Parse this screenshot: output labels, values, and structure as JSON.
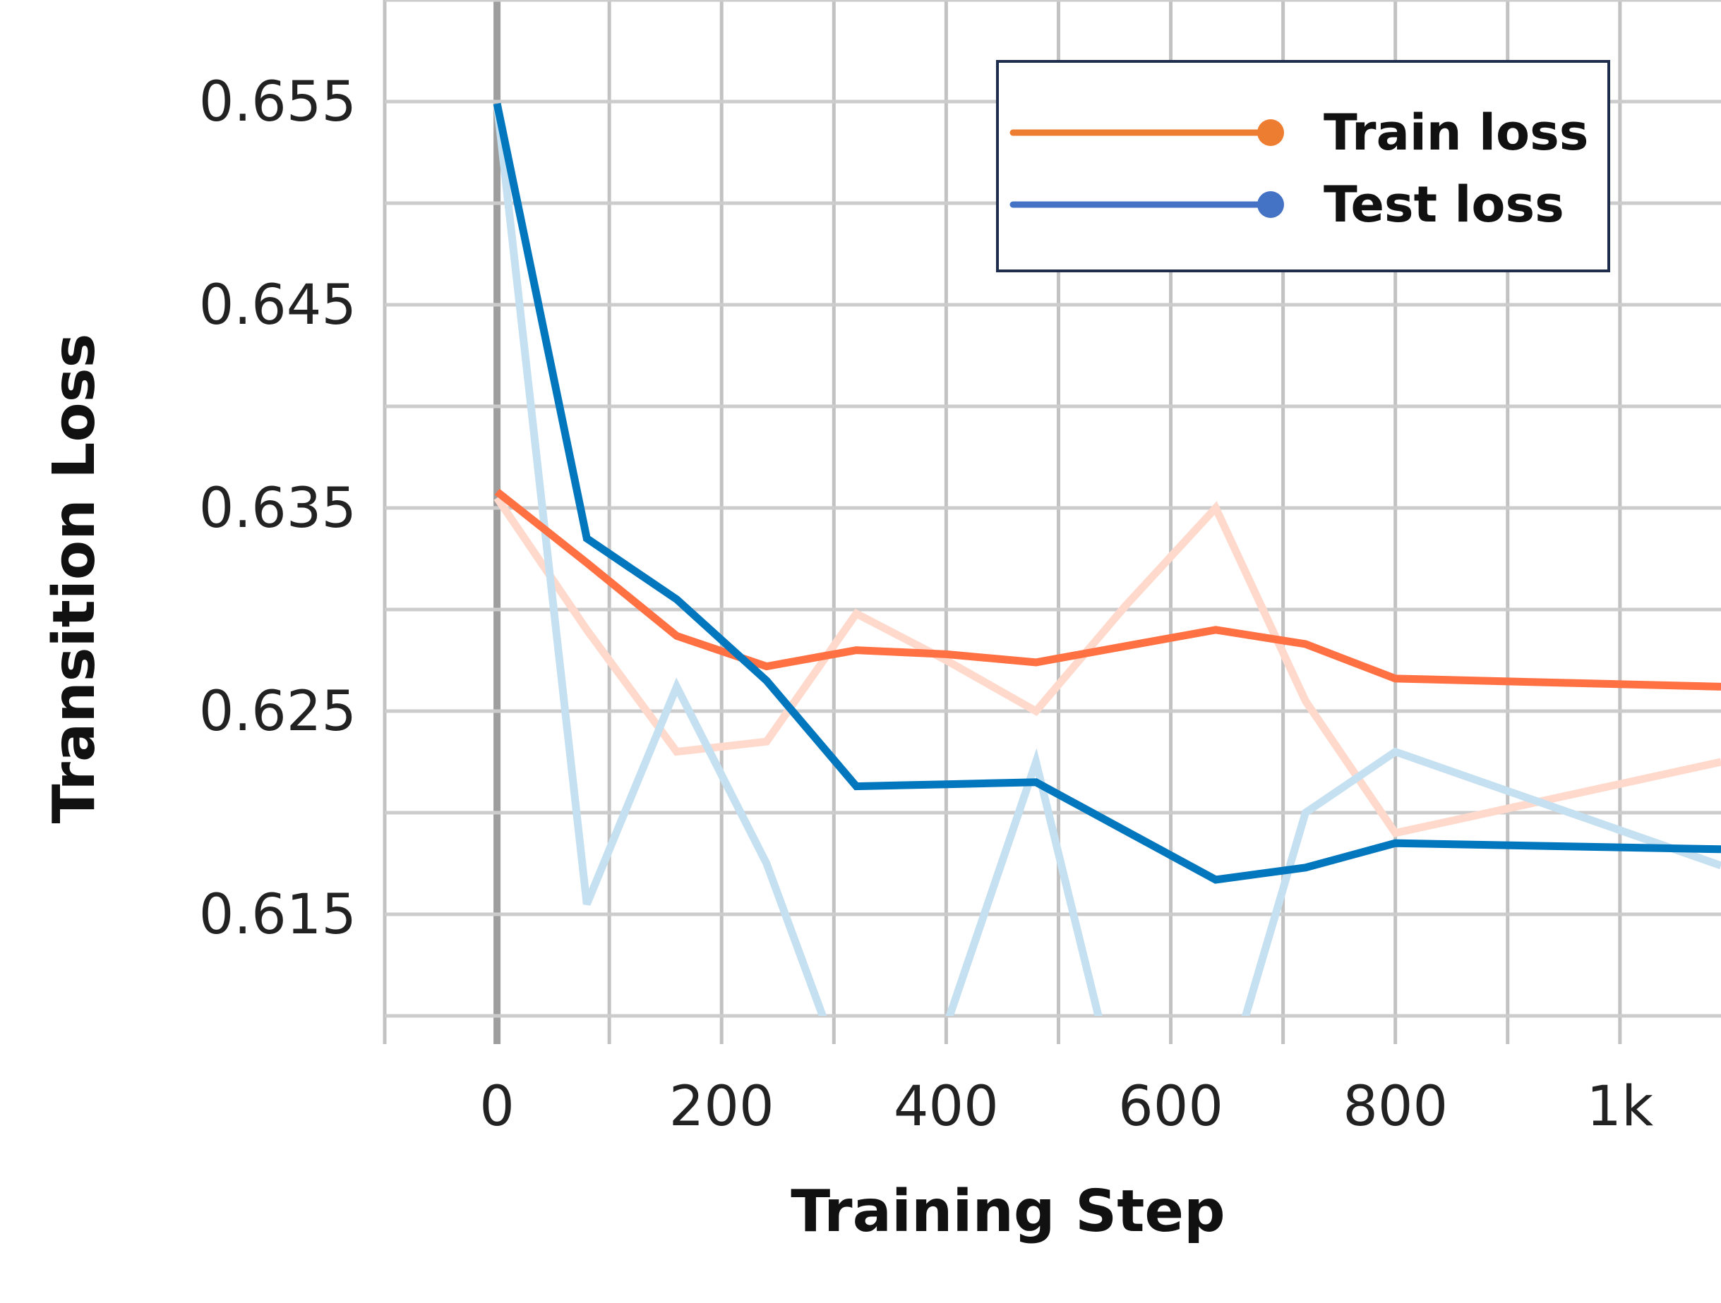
{
  "chart_data": {
    "type": "line",
    "title": "",
    "xlabel": "Training Step",
    "ylabel": "Transition Loss",
    "xlim": [
      -100,
      1090
    ],
    "ylim": [
      0.61,
      0.66
    ],
    "x_ticks": [
      0,
      200,
      400,
      600,
      800,
      1000
    ],
    "x_tick_labels": [
      "0",
      "200",
      "400",
      "600",
      "800",
      "1k"
    ],
    "y_ticks": [
      0.615,
      0.625,
      0.635,
      0.645,
      0.655
    ],
    "y_tick_labels": [
      "0.615",
      "0.625",
      "0.635",
      "0.645",
      "0.655"
    ],
    "grid": true,
    "legend": {
      "position": "top-right"
    },
    "series": [
      {
        "name": "Train loss",
        "color": "#ff7043",
        "legend_color": "#ed7d31",
        "raw_color": "#ffd9cc",
        "x": [
          0,
          80,
          160,
          240,
          320,
          400,
          480,
          560,
          640,
          720,
          800,
          1090
        ],
        "values": [
          0.6358,
          0.6323,
          0.6287,
          0.6272,
          0.628,
          0.6278,
          0.6274,
          0.6282,
          0.629,
          0.6283,
          0.6266,
          0.6262
        ],
        "raw_values": [
          0.6355,
          0.629,
          0.623,
          0.6235,
          0.6298,
          0.6275,
          0.625,
          0.6302,
          0.635,
          0.6255,
          0.619,
          0.6225
        ]
      },
      {
        "name": "Test loss",
        "color": "#0277bd",
        "legend_color": "#4472c4",
        "raw_color": "#c5e0f0",
        "x": [
          0,
          80,
          160,
          240,
          320,
          400,
          480,
          560,
          640,
          720,
          800,
          1090
        ],
        "values": [
          0.6549,
          0.6335,
          0.6305,
          0.6265,
          0.6213,
          0.6214,
          0.6215,
          0.6191,
          0.6167,
          0.6173,
          0.6185,
          0.6182
        ],
        "raw_values": [
          0.6549,
          0.6155,
          0.6262,
          0.6175,
          0.6055,
          0.6095,
          0.6225,
          0.6045,
          0.605,
          0.62,
          0.623,
          0.6174
        ]
      }
    ]
  }
}
